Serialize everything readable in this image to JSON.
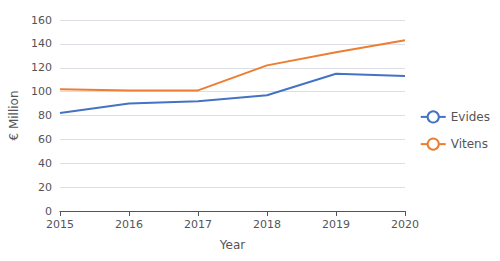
{
  "chart_data": {
    "type": "line",
    "categories": [
      "2015",
      "2016",
      "2017",
      "2018",
      "2019",
      "2020"
    ],
    "series": [
      {
        "name": "Evides",
        "color": "#4472C4",
        "values": [
          82,
          90,
          92,
          97,
          115,
          113
        ]
      },
      {
        "name": "Vitens",
        "color": "#ED7D31",
        "values": [
          102,
          101,
          101,
          122,
          133,
          143
        ]
      }
    ],
    "xlabel": "Year",
    "ylabel": "€ Million",
    "ylim": [
      0,
      160
    ],
    "yticks": [
      0,
      20,
      40,
      60,
      80,
      100,
      120,
      140,
      160
    ],
    "grid": true,
    "legend": "right"
  }
}
